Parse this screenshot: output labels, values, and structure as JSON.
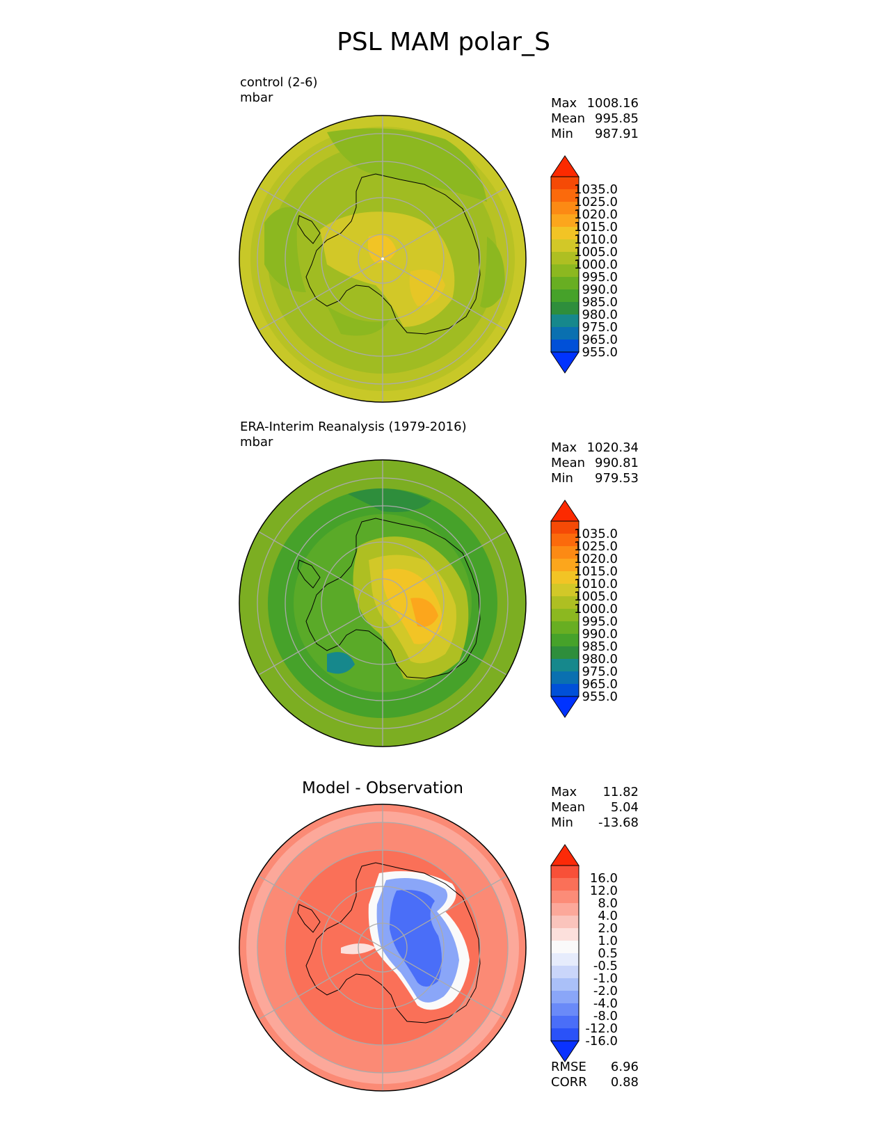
{
  "title": "PSL MAM polar_S",
  "panels": [
    {
      "id": "test",
      "name_line": "control (2-6)",
      "units_line": "mbar",
      "stats": {
        "max_label": "Max",
        "max": "1008.16",
        "mean_label": "Mean",
        "mean": "995.85",
        "min_label": "Min",
        "min": "987.91"
      },
      "colorbar_levels": [
        "1035.0",
        "1025.0",
        "1020.0",
        "1015.0",
        "1010.0",
        "1005.0",
        "1000.0",
        "995.0",
        "990.0",
        "985.0",
        "980.0",
        "975.0",
        "965.0",
        "955.0"
      ]
    },
    {
      "id": "reference",
      "name_line": "ERA-Interim Reanalysis (1979-2016)",
      "units_line": "mbar",
      "stats": {
        "max_label": "Max",
        "max": "1020.34",
        "mean_label": "Mean",
        "mean": "990.81",
        "min_label": "Min",
        "min": "979.53"
      },
      "colorbar_levels": [
        "1035.0",
        "1025.0",
        "1020.0",
        "1015.0",
        "1010.0",
        "1005.0",
        "1000.0",
        "995.0",
        "990.0",
        "985.0",
        "980.0",
        "975.0",
        "965.0",
        "955.0"
      ]
    },
    {
      "id": "difference",
      "title": "Model - Observation",
      "stats": {
        "max_label": "Max",
        "max": "11.82",
        "mean_label": "Mean",
        "mean": "5.04",
        "min_label": "Min",
        "min": "-13.68"
      },
      "colorbar_levels": [
        "16.0",
        "12.0",
        "8.0",
        "4.0",
        "2.0",
        "1.0",
        "0.5",
        "-0.5",
        "-1.0",
        "-2.0",
        "-4.0",
        "-8.0",
        "-12.0",
        "-16.0"
      ],
      "metrics": {
        "rmse_label": "RMSE",
        "rmse": "6.96",
        "corr_label": "CORR",
        "corr": "0.88"
      }
    }
  ],
  "colors": {
    "psl_scale": [
      "#0033ff",
      "#0050d8",
      "#0a70b0",
      "#16888c",
      "#2e8e3c",
      "#46a22a",
      "#68ae22",
      "#8cb820",
      "#aebf22",
      "#d2c828",
      "#f2c425",
      "#fca61c",
      "#fc8a14",
      "#fb6a0c",
      "#f54a06",
      "#fc2a00"
    ],
    "diff_scale": [
      "#0a32ff",
      "#2a52f8",
      "#4a6ef8",
      "#6a8af8",
      "#8aa6f8",
      "#aac0f8",
      "#cad6fa",
      "#e6ecfc",
      "#fafafa",
      "#fce0dc",
      "#fac4bc",
      "#fca89a",
      "#fc8c78",
      "#fa7058",
      "#f85038",
      "#fc2a08"
    ],
    "psl_test_background": "#c8c828",
    "psl_ref_background": "#7cae22",
    "diff_background": "#fb8a75",
    "gridline": "#aaaaaa"
  }
}
